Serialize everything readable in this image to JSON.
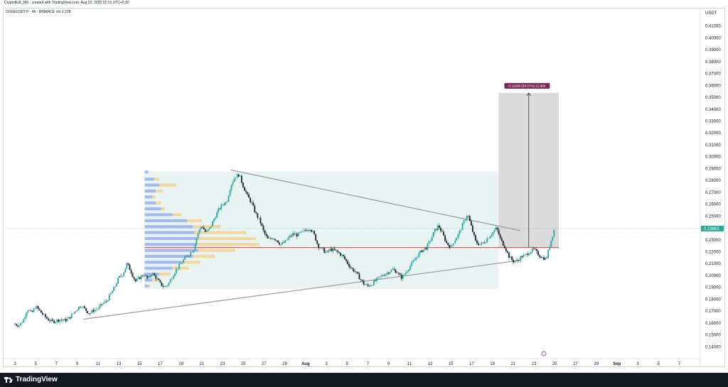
{
  "header": {
    "caption": "CryptoBull_360 · created with TradingView.com, Aug 23, 2025 01:15 UTC+5:30",
    "symbol_line": "DOGEUSDT.P · 4h · BINANCE  Vol 2.22B"
  },
  "footer": {
    "brand": "TradingView"
  },
  "colors": {
    "up": "#26a69a",
    "down": "#1a1f2b",
    "volume_up": "#f5d08b",
    "volume_down": "#8fa6f0",
    "hline": "#e53935",
    "trendline": "#9e9e9e",
    "range_fill": "#dff0ee",
    "target_box": "#bdbdbd",
    "label_bg": "#7a2a55",
    "price_badge": "#26a69a"
  },
  "chart_data": {
    "type": "candlestick",
    "title": "",
    "ylabel": "USDT",
    "xlabel": "",
    "ylim": [
      0.13,
      0.42
    ],
    "y_ticks": [
      "0.41000",
      "0.40000",
      "0.39000",
      "0.38000",
      "0.37000",
      "0.36000",
      "0.35000",
      "0.34000",
      "0.33000",
      "0.32000",
      "0.31000",
      "0.30000",
      "0.29000",
      "0.28000",
      "0.27000",
      "0.26000",
      "0.25000",
      "0.24000",
      "0.23000",
      "0.22000",
      "0.21000",
      "0.20000",
      "0.19000",
      "0.18000",
      "0.17000",
      "0.16000",
      "0.15000",
      "0.14000"
    ],
    "x_ticks": [
      "3",
      "5",
      "7",
      "9",
      "11",
      "13",
      "15",
      "17",
      "19",
      "21",
      "23",
      "25",
      "27",
      "29",
      "Aug",
      "3",
      "5",
      "7",
      "9",
      "11",
      "13",
      "15",
      "17",
      "19",
      "21",
      "23",
      "25",
      "27",
      "29",
      "Sep",
      "3",
      "5",
      "7"
    ],
    "current_price": "0.23953",
    "target_label": "0.12999 (58.07%) 12,999",
    "horizontal_level": 0.2235,
    "upper_trendline": [
      [
        0.2888,
        20.8
      ],
      [
        0.2378,
        48.7
      ]
    ],
    "lower_trendline": [
      [
        0.1632,
        6.6
      ],
      [
        0.2128,
        48.7
      ]
    ],
    "target_box": {
      "x_range": [
        46.6,
        52.4
      ],
      "y_range": [
        0.2238,
        0.3537
      ]
    },
    "range_box": {
      "x_range": [
        12.5,
        46.6
      ],
      "y_range": [
        0.1888,
        0.2874
      ]
    },
    "path": [
      [
        0.0,
        0.159
      ],
      [
        0.4,
        0.158
      ],
      [
        0.8,
        0.162
      ],
      [
        1.2,
        0.172
      ],
      [
        1.6,
        0.168
      ],
      [
        2.0,
        0.174
      ],
      [
        2.4,
        0.17
      ],
      [
        2.8,
        0.166
      ],
      [
        3.2,
        0.163
      ],
      [
        3.6,
        0.161
      ],
      [
        4.0,
        0.162
      ],
      [
        4.4,
        0.163
      ],
      [
        4.8,
        0.162
      ],
      [
        5.2,
        0.164
      ],
      [
        5.6,
        0.168
      ],
      [
        6.0,
        0.172
      ],
      [
        6.4,
        0.175
      ],
      [
        6.8,
        0.171
      ],
      [
        7.2,
        0.168
      ],
      [
        7.6,
        0.171
      ],
      [
        8.0,
        0.172
      ],
      [
        8.4,
        0.176
      ],
      [
        8.8,
        0.178
      ],
      [
        9.2,
        0.184
      ],
      [
        9.6,
        0.19
      ],
      [
        10.0,
        0.198
      ],
      [
        10.4,
        0.201
      ],
      [
        10.8,
        0.21
      ],
      [
        11.2,
        0.203
      ],
      [
        11.6,
        0.195
      ],
      [
        12.0,
        0.198
      ],
      [
        12.4,
        0.201
      ],
      [
        12.8,
        0.197
      ],
      [
        13.2,
        0.202
      ],
      [
        13.6,
        0.198
      ],
      [
        14.0,
        0.193
      ],
      [
        14.4,
        0.19
      ],
      [
        14.8,
        0.193
      ],
      [
        15.2,
        0.2
      ],
      [
        15.6,
        0.206
      ],
      [
        16.0,
        0.21
      ],
      [
        16.4,
        0.215
      ],
      [
        16.8,
        0.218
      ],
      [
        17.2,
        0.222
      ],
      [
        17.6,
        0.235
      ],
      [
        18.0,
        0.242
      ],
      [
        18.4,
        0.236
      ],
      [
        18.8,
        0.24
      ],
      [
        19.2,
        0.248
      ],
      [
        19.6,
        0.255
      ],
      [
        20.0,
        0.26
      ],
      [
        20.4,
        0.262
      ],
      [
        20.8,
        0.276
      ],
      [
        21.2,
        0.283
      ],
      [
        21.6,
        0.285
      ],
      [
        22.0,
        0.275
      ],
      [
        22.4,
        0.267
      ],
      [
        22.8,
        0.261
      ],
      [
        23.2,
        0.252
      ],
      [
        23.6,
        0.246
      ],
      [
        24.0,
        0.236
      ],
      [
        24.4,
        0.23
      ],
      [
        24.8,
        0.232
      ],
      [
        25.2,
        0.23
      ],
      [
        25.6,
        0.226
      ],
      [
        26.0,
        0.228
      ],
      [
        26.4,
        0.232
      ],
      [
        26.8,
        0.235
      ],
      [
        27.2,
        0.234
      ],
      [
        27.6,
        0.236
      ],
      [
        28.0,
        0.238
      ],
      [
        28.4,
        0.24
      ],
      [
        28.8,
        0.235
      ],
      [
        29.2,
        0.225
      ],
      [
        29.6,
        0.222
      ],
      [
        30.0,
        0.219
      ],
      [
        30.4,
        0.222
      ],
      [
        30.8,
        0.221
      ],
      [
        31.2,
        0.219
      ],
      [
        31.6,
        0.216
      ],
      [
        32.0,
        0.211
      ],
      [
        32.4,
        0.206
      ],
      [
        32.8,
        0.203
      ],
      [
        33.2,
        0.198
      ],
      [
        33.6,
        0.193
      ],
      [
        34.0,
        0.191
      ],
      [
        34.4,
        0.193
      ],
      [
        34.8,
        0.196
      ],
      [
        35.2,
        0.199
      ],
      [
        35.6,
        0.201
      ],
      [
        36.0,
        0.203
      ],
      [
        36.4,
        0.205
      ],
      [
        36.8,
        0.203
      ],
      [
        37.2,
        0.198
      ],
      [
        37.6,
        0.202
      ],
      [
        38.0,
        0.207
      ],
      [
        38.4,
        0.212
      ],
      [
        38.8,
        0.217
      ],
      [
        39.2,
        0.221
      ],
      [
        39.6,
        0.223
      ],
      [
        40.0,
        0.229
      ],
      [
        40.4,
        0.237
      ],
      [
        40.8,
        0.242
      ],
      [
        41.2,
        0.235
      ],
      [
        41.6,
        0.227
      ],
      [
        42.0,
        0.224
      ],
      [
        42.4,
        0.23
      ],
      [
        42.8,
        0.236
      ],
      [
        43.2,
        0.244
      ],
      [
        43.6,
        0.252
      ],
      [
        44.0,
        0.24
      ],
      [
        44.4,
        0.228
      ],
      [
        44.8,
        0.226
      ],
      [
        45.2,
        0.228
      ],
      [
        45.6,
        0.232
      ],
      [
        46.0,
        0.236
      ],
      [
        46.4,
        0.24
      ],
      [
        46.8,
        0.23
      ],
      [
        47.2,
        0.224
      ],
      [
        47.6,
        0.216
      ],
      [
        48.0,
        0.212
      ],
      [
        48.4,
        0.212
      ],
      [
        48.8,
        0.216
      ],
      [
        49.2,
        0.217
      ],
      [
        49.6,
        0.22
      ],
      [
        50.0,
        0.222
      ],
      [
        50.4,
        0.218
      ],
      [
        50.8,
        0.215
      ],
      [
        51.2,
        0.214
      ],
      [
        51.6,
        0.228
      ],
      [
        52.0,
        0.24
      ]
    ],
    "volume_profile": [
      {
        "price": 0.287,
        "buy": 0.2,
        "sell": 0.0
      },
      {
        "price": 0.281,
        "buy": 0.5,
        "sell": 0.3
      },
      {
        "price": 0.276,
        "buy": 0.8,
        "sell": 0.9
      },
      {
        "price": 0.271,
        "buy": 0.6,
        "sell": 0.4
      },
      {
        "price": 0.266,
        "buy": 0.4,
        "sell": 0.2
      },
      {
        "price": 0.261,
        "buy": 0.6,
        "sell": 0.3
      },
      {
        "price": 0.256,
        "buy": 0.9,
        "sell": 0.2
      },
      {
        "price": 0.251,
        "buy": 1.5,
        "sell": 0.5
      },
      {
        "price": 0.246,
        "buy": 2.3,
        "sell": 0.8
      },
      {
        "price": 0.241,
        "buy": 2.6,
        "sell": 1.5
      },
      {
        "price": 0.236,
        "buy": 2.7,
        "sell": 2.8
      },
      {
        "price": 0.231,
        "buy": 2.8,
        "sell": 3.2
      },
      {
        "price": 0.226,
        "buy": 2.8,
        "sell": 3.4
      },
      {
        "price": 0.221,
        "buy": 2.9,
        "sell": 2.0
      },
      {
        "price": 0.216,
        "buy": 2.6,
        "sell": 1.2
      },
      {
        "price": 0.211,
        "buy": 2.0,
        "sell": 1.0
      },
      {
        "price": 0.206,
        "buy": 1.5,
        "sell": 0.9
      },
      {
        "price": 0.201,
        "buy": 0.8,
        "sell": 0.6
      },
      {
        "price": 0.196,
        "buy": 0.4,
        "sell": 0.3
      },
      {
        "price": 0.191,
        "buy": 0.2,
        "sell": 0.1
      }
    ]
  }
}
